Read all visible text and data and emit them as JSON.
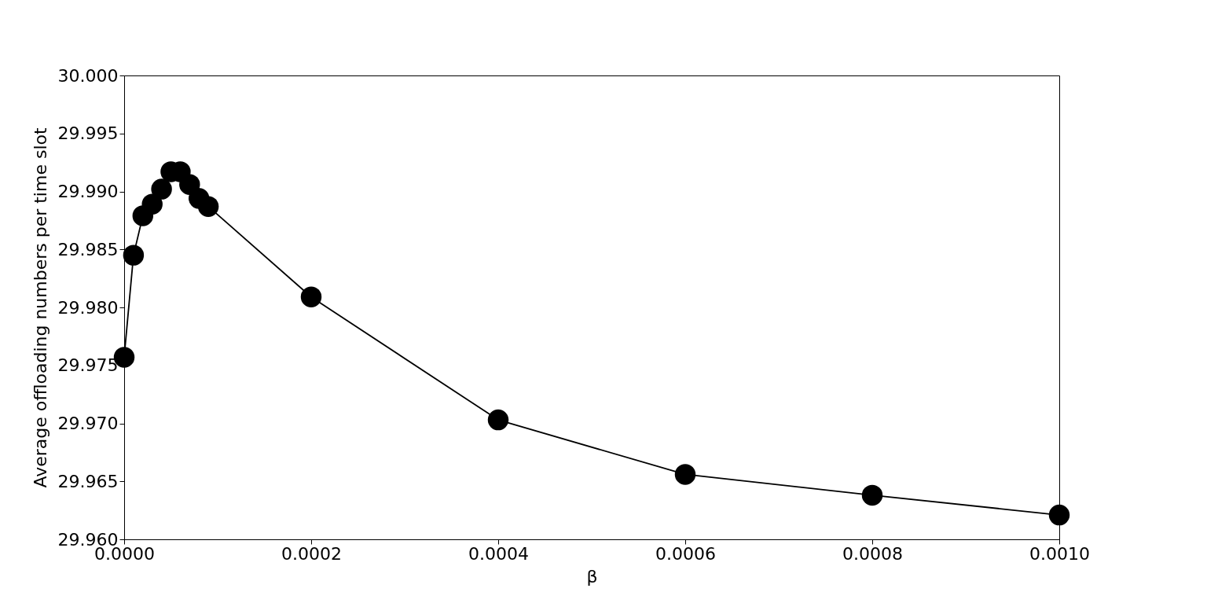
{
  "chart_data": {
    "type": "line",
    "xlabel": "β",
    "ylabel": "Average offloading numbers per time slot",
    "x": [
      0,
      1e-05,
      2e-05,
      3e-05,
      4e-05,
      5e-05,
      6e-05,
      7e-05,
      8e-05,
      9e-05,
      0.0002,
      0.0004,
      0.0006,
      0.0008,
      0.001
    ],
    "series": [
      {
        "color": "#000000",
        "values": [
          29.9757,
          29.9845,
          29.9879,
          29.9889,
          29.9902,
          29.9917,
          29.9917,
          29.9906,
          29.9894,
          29.9887,
          29.9809,
          29.9703,
          29.9656,
          29.9638,
          29.9621
        ]
      }
    ],
    "xlim": [
      0,
      0.001
    ],
    "xticks": [
      {
        "value": 0,
        "label": "0.0000"
      },
      {
        "value": 0.0002,
        "label": "0.0002"
      },
      {
        "value": 0.0004,
        "label": "0.0004"
      },
      {
        "value": 0.0006,
        "label": "0.0006"
      },
      {
        "value": 0.0008,
        "label": "0.0008"
      },
      {
        "value": 0.001,
        "label": "0.0010"
      }
    ],
    "ylim": [
      29.96,
      30
    ],
    "yticks": [
      {
        "value": 29.96,
        "label": "29.960"
      },
      {
        "value": 29.965,
        "label": "29.965"
      },
      {
        "value": 29.97,
        "label": "29.970"
      },
      {
        "value": 29.975,
        "label": "29.975"
      },
      {
        "value": 29.98,
        "label": "29.980"
      },
      {
        "value": 29.985,
        "label": "29.985"
      },
      {
        "value": 29.99,
        "label": "29.990"
      },
      {
        "value": 29.995,
        "label": "29.995"
      },
      {
        "value": 30,
        "label": "30.000"
      }
    ],
    "grid": false,
    "marker": "circle",
    "line_style": "solid"
  }
}
